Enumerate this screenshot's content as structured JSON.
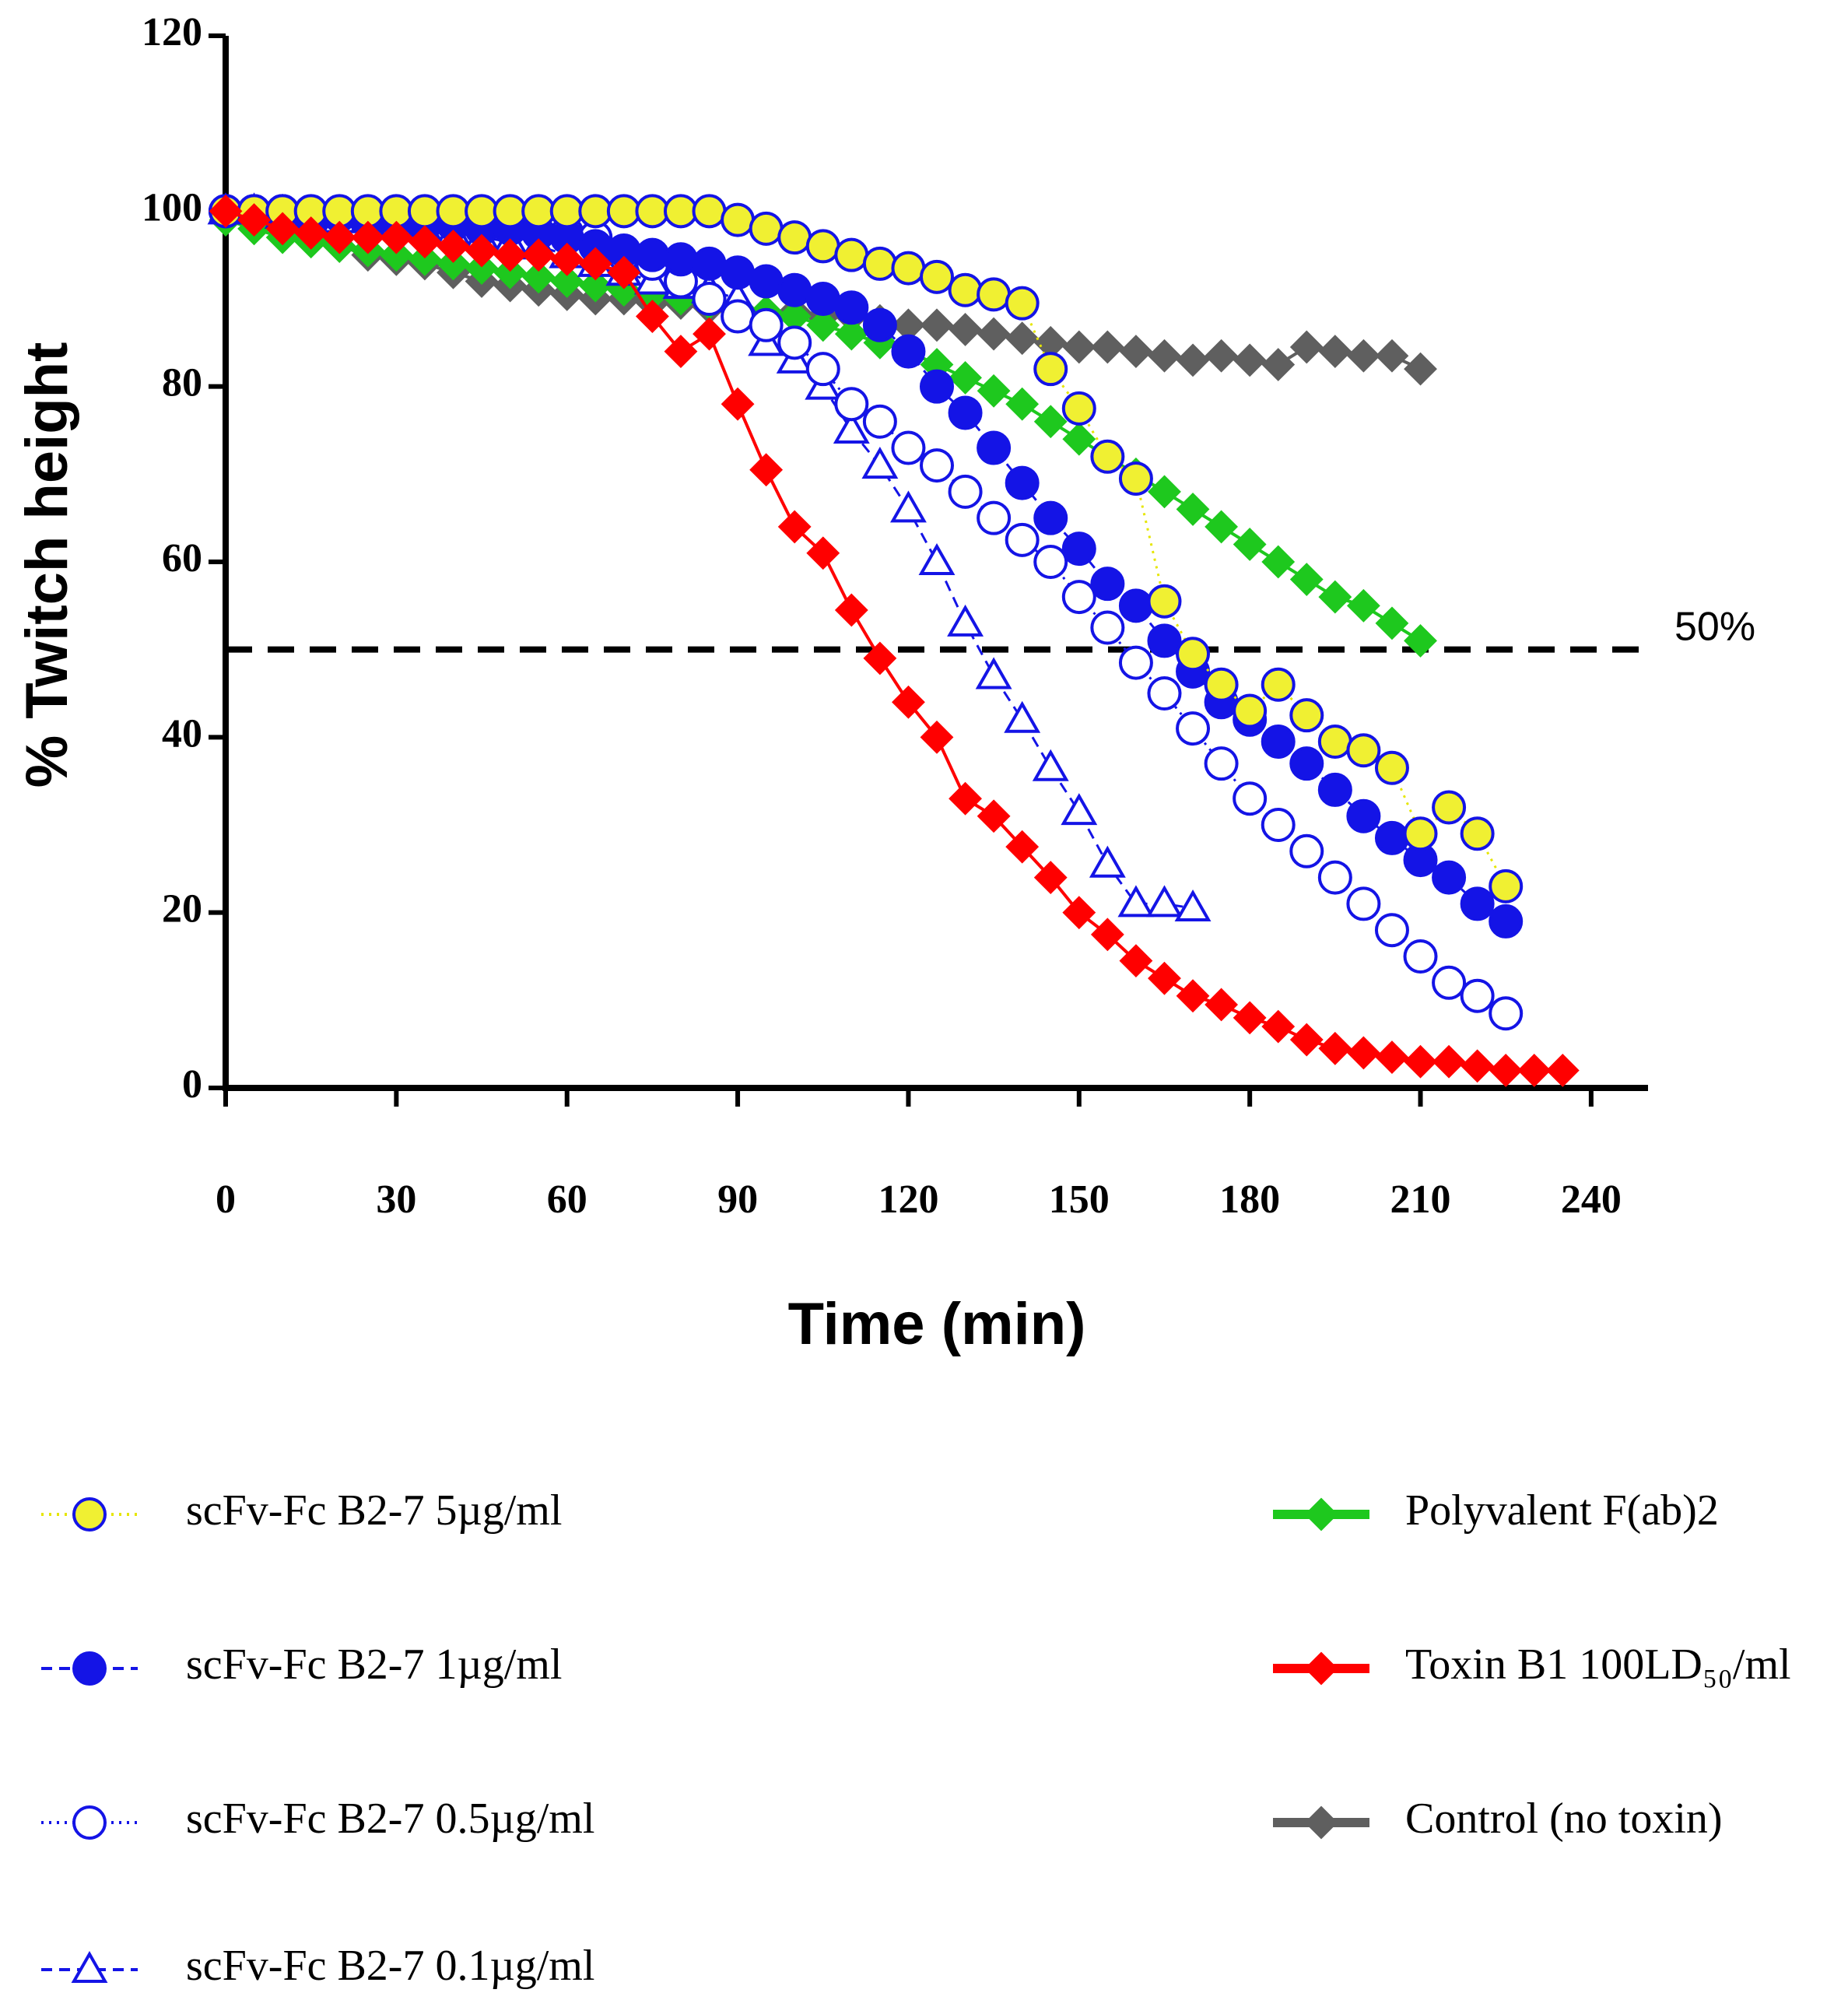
{
  "chart_data": {
    "type": "line",
    "x_label": "Time  (min)",
    "y_label": "% Twitch height",
    "annotation": {
      "text": "50%",
      "y": 50
    },
    "xlim": [
      0,
      250
    ],
    "xticks": [
      0,
      30,
      60,
      90,
      120,
      150,
      180,
      210,
      240
    ],
    "ylim": [
      0,
      120
    ],
    "yticks": [
      0,
      20,
      40,
      60,
      80,
      100,
      120
    ],
    "series": [
      {
        "name": "Control (no toxin)",
        "color": "#5f5f5f",
        "marker": "diamond",
        "fill": "#5f5f5f",
        "dash": "solid",
        "x": [
          0,
          5,
          10,
          15,
          20,
          25,
          30,
          35,
          40,
          45,
          50,
          55,
          60,
          65,
          70,
          75,
          80,
          85,
          90,
          95,
          100,
          105,
          110,
          115,
          120,
          125,
          130,
          135,
          140,
          145,
          150,
          155,
          160,
          165,
          170,
          175,
          180,
          185,
          190,
          195,
          200,
          205,
          210
        ],
        "values": [
          100,
          99,
          98,
          97,
          96,
          95,
          94.5,
          94,
          93,
          92,
          91.5,
          91,
          90.5,
          90,
          90,
          89.5,
          89.5,
          89,
          89,
          88.5,
          88.5,
          88,
          88,
          87.5,
          87,
          87,
          86.5,
          86,
          85.5,
          85,
          84.5,
          84.5,
          84,
          83.5,
          83,
          83.5,
          83,
          82.5,
          84.5,
          84,
          83.5,
          83.5,
          82
        ]
      },
      {
        "name": "Polyvalent F(ab)2",
        "color": "#1ec81e",
        "marker": "diamond",
        "fill": "#1ec81e",
        "dash": "solid",
        "x": [
          0,
          5,
          10,
          15,
          20,
          25,
          30,
          35,
          40,
          45,
          50,
          55,
          60,
          65,
          70,
          75,
          80,
          85,
          90,
          95,
          100,
          105,
          110,
          115,
          120,
          125,
          130,
          135,
          140,
          145,
          150,
          155,
          160,
          165,
          170,
          175,
          180,
          185,
          190,
          195,
          200,
          205,
          210
        ],
        "values": [
          99,
          98,
          97,
          96.5,
          96,
          95.5,
          95,
          94.5,
          94,
          93.5,
          93,
          92.5,
          92,
          91.5,
          91,
          90.5,
          90,
          89.5,
          89,
          88.5,
          88,
          87,
          86,
          85,
          84,
          82.5,
          81,
          79.5,
          78,
          76,
          74,
          72,
          70,
          68,
          66,
          64,
          62,
          60,
          58,
          56,
          55,
          53,
          51
        ]
      },
      {
        "name": "scFv-Fc B2-7 0.1µg/ml",
        "color": "#1414e6",
        "marker": "triangle",
        "fill": "#ffffff",
        "dash": "dashed",
        "x": [
          0,
          5,
          10,
          15,
          20,
          25,
          30,
          35,
          40,
          45,
          50,
          55,
          60,
          65,
          70,
          75,
          80,
          85,
          90,
          95,
          100,
          105,
          110,
          115,
          120,
          125,
          130,
          135,
          140,
          145,
          150,
          155,
          160,
          165,
          170
        ],
        "values": [
          100,
          100,
          99.5,
          99.5,
          99,
          99,
          98.5,
          98,
          97.5,
          97,
          96.5,
          96,
          95,
          94,
          93,
          92,
          91.5,
          91,
          90,
          85,
          83,
          80,
          75,
          71,
          66,
          60,
          53,
          47,
          42,
          36.5,
          31.5,
          25.5,
          21,
          21,
          20.5
        ]
      },
      {
        "name": "scFv-Fc B2-7 0.5µg/ml",
        "color": "#1414e6",
        "marker": "circle",
        "fill": "#ffffff",
        "dash": "dotted",
        "x": [
          0,
          5,
          10,
          15,
          20,
          25,
          30,
          35,
          40,
          45,
          50,
          55,
          60,
          65,
          70,
          75,
          80,
          85,
          90,
          95,
          100,
          105,
          110,
          115,
          120,
          125,
          130,
          135,
          140,
          145,
          150,
          155,
          160,
          165,
          170,
          175,
          180,
          185,
          190,
          195,
          200,
          205,
          210,
          215,
          220,
          225
        ],
        "values": [
          100,
          100,
          100,
          99.5,
          99.5,
          99,
          99,
          98.5,
          98.5,
          98,
          98,
          97.5,
          97.5,
          97,
          95,
          94,
          92,
          90,
          88,
          87,
          85,
          82,
          78,
          76,
          73,
          71,
          68,
          65,
          62.5,
          60,
          56,
          52.5,
          48.5,
          45,
          41,
          37,
          33,
          30,
          27,
          24,
          21,
          18,
          15,
          12,
          10.5,
          8.5
        ]
      },
      {
        "name": "scFv-Fc B2-7 1µg/ml",
        "color": "#1414e6",
        "marker": "circle",
        "fill": "#1414e6",
        "dash": "dashed",
        "x": [
          0,
          5,
          10,
          15,
          20,
          25,
          30,
          35,
          40,
          45,
          50,
          55,
          60,
          65,
          70,
          75,
          80,
          85,
          90,
          95,
          100,
          105,
          110,
          115,
          120,
          125,
          130,
          135,
          140,
          145,
          150,
          155,
          160,
          165,
          170,
          175,
          180,
          185,
          190,
          195,
          200,
          205,
          210,
          215,
          220,
          225
        ],
        "values": [
          100,
          100,
          100,
          99.5,
          99.5,
          99,
          99,
          98.5,
          98.5,
          98,
          98,
          97.5,
          97,
          96,
          95.5,
          95,
          94.5,
          94,
          93,
          92,
          91,
          90,
          89,
          87,
          84,
          80,
          77,
          73,
          69,
          65,
          61.5,
          57.5,
          55,
          51,
          47.5,
          44,
          42,
          39.5,
          37,
          34,
          31,
          28.5,
          26,
          24,
          21,
          19
        ]
      },
      {
        "name": "scFv-Fc B2-7  5µg/ml",
        "color": "#e6e600",
        "marker": "circle",
        "fill": "#f0f032",
        "stroke": "#1414e6",
        "dash": "dotted",
        "x": [
          0,
          5,
          10,
          15,
          20,
          25,
          30,
          35,
          40,
          45,
          50,
          55,
          60,
          65,
          70,
          75,
          80,
          85,
          90,
          95,
          100,
          105,
          110,
          115,
          120,
          125,
          130,
          135,
          140,
          145,
          150,
          155,
          160,
          165,
          170,
          175,
          180,
          185,
          190,
          195,
          200,
          205,
          210,
          215,
          220,
          225
        ],
        "values": [
          100,
          100,
          100,
          100,
          100,
          100,
          100,
          100,
          100,
          100,
          100,
          100,
          100,
          100,
          100,
          100,
          100,
          100,
          99,
          98,
          97,
          96,
          95,
          94,
          93.5,
          92.5,
          91,
          90.5,
          89.5,
          82,
          77.5,
          72,
          69.5,
          55.5,
          49.5,
          46,
          43,
          46,
          42.5,
          39.5,
          38.5,
          36.5,
          29,
          32,
          29,
          23
        ]
      },
      {
        "name": "Toxin B1 100LD₅₀/ml",
        "color": "#ff0000",
        "marker": "diamond",
        "fill": "#ff0000",
        "dash": "solid",
        "x": [
          0,
          5,
          10,
          15,
          20,
          25,
          30,
          35,
          40,
          45,
          50,
          55,
          60,
          65,
          70,
          75,
          80,
          85,
          90,
          95,
          100,
          105,
          110,
          115,
          120,
          125,
          130,
          135,
          140,
          145,
          150,
          155,
          160,
          165,
          170,
          175,
          180,
          185,
          190,
          195,
          200,
          205,
          210,
          215,
          220,
          225,
          230,
          235
        ],
        "values": [
          100,
          99,
          98,
          97.5,
          97,
          97,
          97,
          96.5,
          96,
          95.5,
          95,
          95,
          94.5,
          94,
          93,
          88,
          84,
          86,
          78,
          70.5,
          64,
          61,
          54.5,
          49,
          44,
          40,
          33,
          31,
          27.5,
          24,
          20,
          17.5,
          14.5,
          12.5,
          10.5,
          9.5,
          8,
          7,
          5.5,
          4.5,
          4,
          3.5,
          3,
          3,
          2.5,
          2,
          2,
          2
        ]
      }
    ],
    "legend_order": [
      5,
      4,
      3,
      2,
      1,
      6,
      0
    ]
  }
}
